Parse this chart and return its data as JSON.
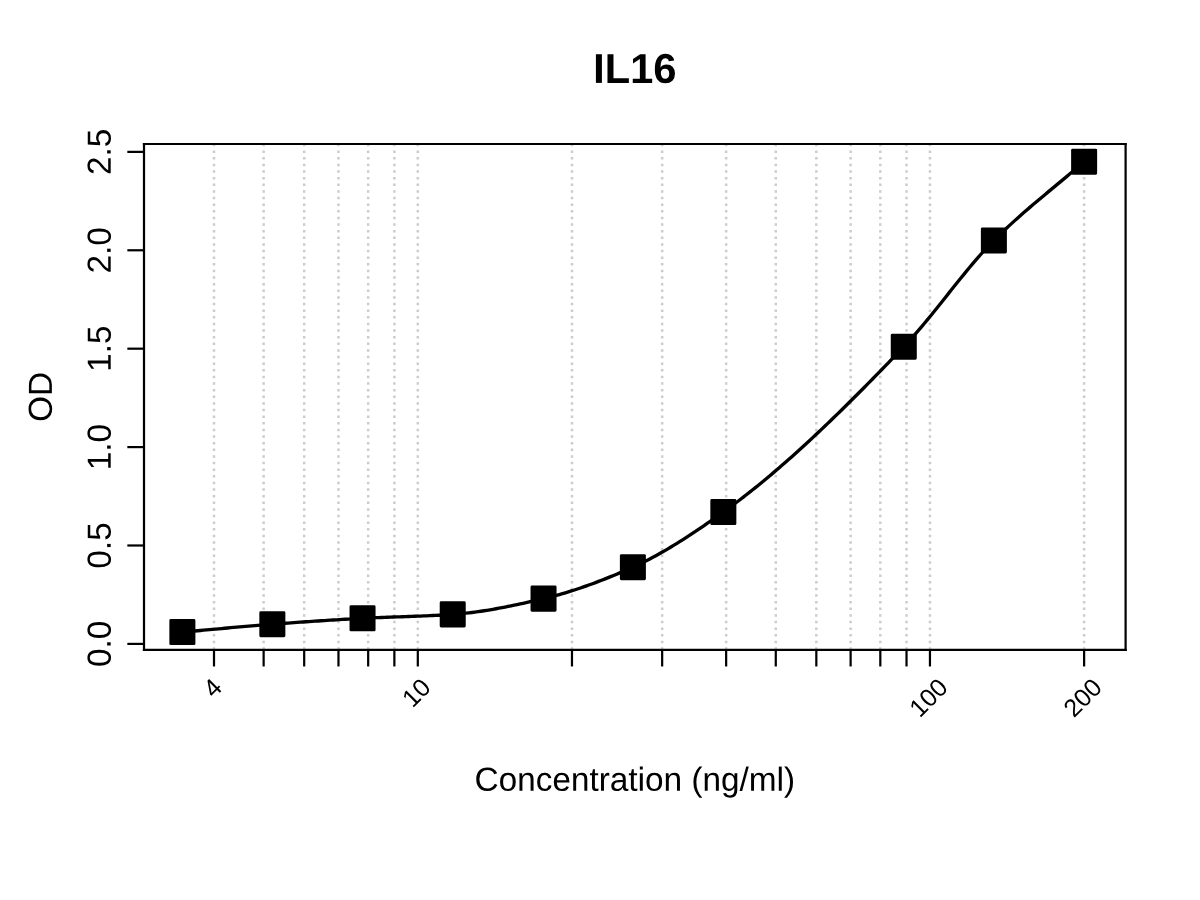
{
  "chart_data": {
    "type": "line",
    "title": "IL16",
    "xlabel": "Concentration (ng/ml)",
    "ylabel": "OD",
    "x": [
      3.47,
      5.2,
      7.8,
      11.7,
      17.6,
      26.3,
      39.5,
      88.9,
      133.3,
      200
    ],
    "series": [
      {
        "color": "#000000",
        "values": [
          0.06,
          0.1,
          0.13,
          0.15,
          0.23,
          0.39,
          0.67,
          1.51,
          2.05,
          2.45
        ]
      }
    ],
    "marker": "square",
    "line_style": "solid",
    "log": "x",
    "grid": "x",
    "xlim": [
      2.92,
      241
    ],
    "ylim": [
      -0.03,
      2.54
    ],
    "xticks": [
      4,
      {
        "value": 5,
        "label": null
      },
      {
        "value": 6,
        "label": null
      },
      {
        "value": 7,
        "label": null
      },
      {
        "value": 8,
        "label": null
      },
      {
        "value": 9,
        "label": null
      },
      10,
      {
        "value": 20,
        "label": null
      },
      {
        "value": 30,
        "label": null
      },
      {
        "value": 40,
        "label": null
      },
      {
        "value": 50,
        "label": null
      },
      {
        "value": 60,
        "label": null
      },
      {
        "value": 70,
        "label": null
      },
      {
        "value": 80,
        "label": null
      },
      {
        "value": 90,
        "label": null
      },
      100,
      200
    ],
    "yticks": [
      {
        "value": 0,
        "label": "0.0"
      },
      0.5,
      {
        "value": 1,
        "label": "1.0"
      },
      1.5,
      {
        "value": 2,
        "label": "2.0"
      },
      2.5
    ]
  }
}
